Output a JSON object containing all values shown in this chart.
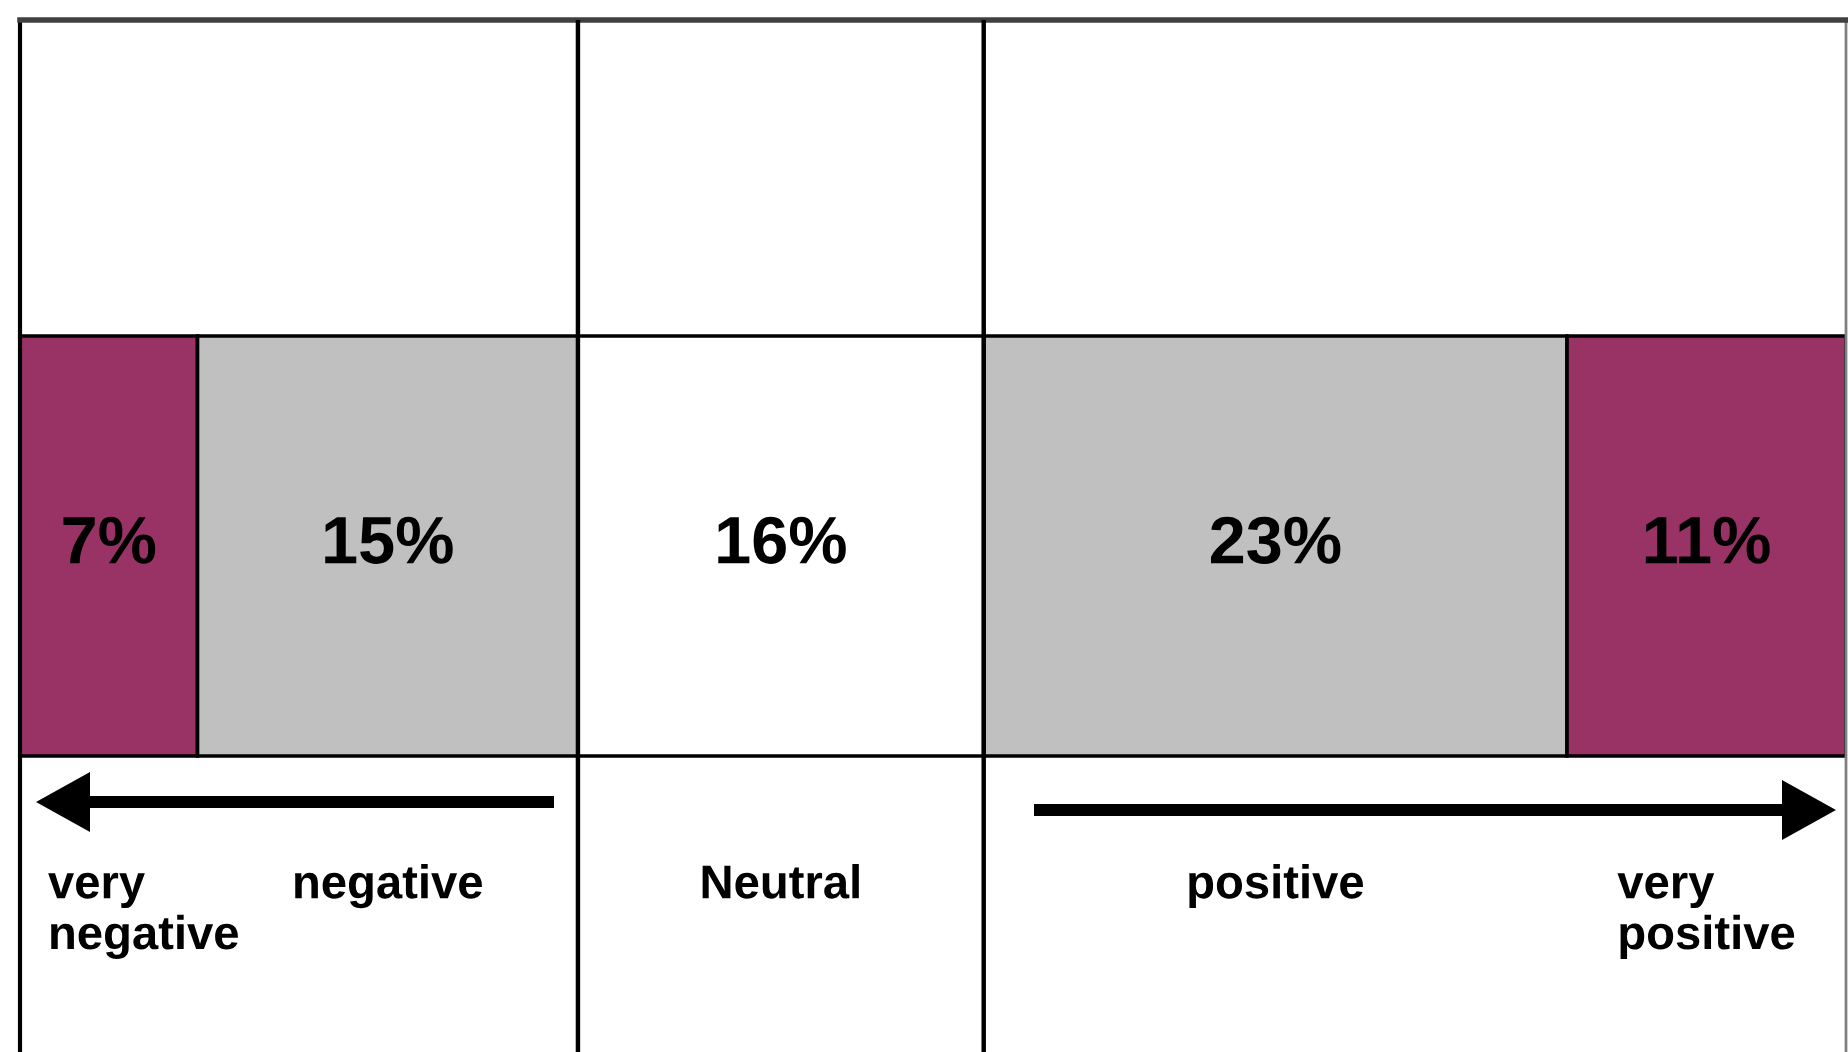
{
  "chart_data": {
    "type": "bar",
    "orientation": "horizontal",
    "stacked": true,
    "categories": [
      null
    ],
    "series": [
      {
        "name": "very negative",
        "color": "#993366",
        "values": [
          7
        ],
        "value_labels": [
          "7%"
        ]
      },
      {
        "name": "negative",
        "color": "#c0c0c0",
        "values": [
          15
        ],
        "value_labels": [
          "15%"
        ]
      },
      {
        "name": "Neutral",
        "color": "#ffffff",
        "values": [
          16
        ],
        "value_labels": [
          "16%"
        ]
      },
      {
        "name": "positive",
        "color": "#c0c0c0",
        "values": [
          23
        ],
        "value_labels": [
          "23%"
        ]
      },
      {
        "name": "very positive",
        "color": "#993366",
        "values": [
          11
        ],
        "value_labels": [
          "11%"
        ]
      }
    ],
    "xlim": [
      0,
      72
    ],
    "tick_labels": false,
    "ref_lines": [
      {
        "axis": "x",
        "value": 22,
        "color": "#000000"
      },
      {
        "axis": "x",
        "value": 38,
        "color": "#000000"
      }
    ]
  }
}
